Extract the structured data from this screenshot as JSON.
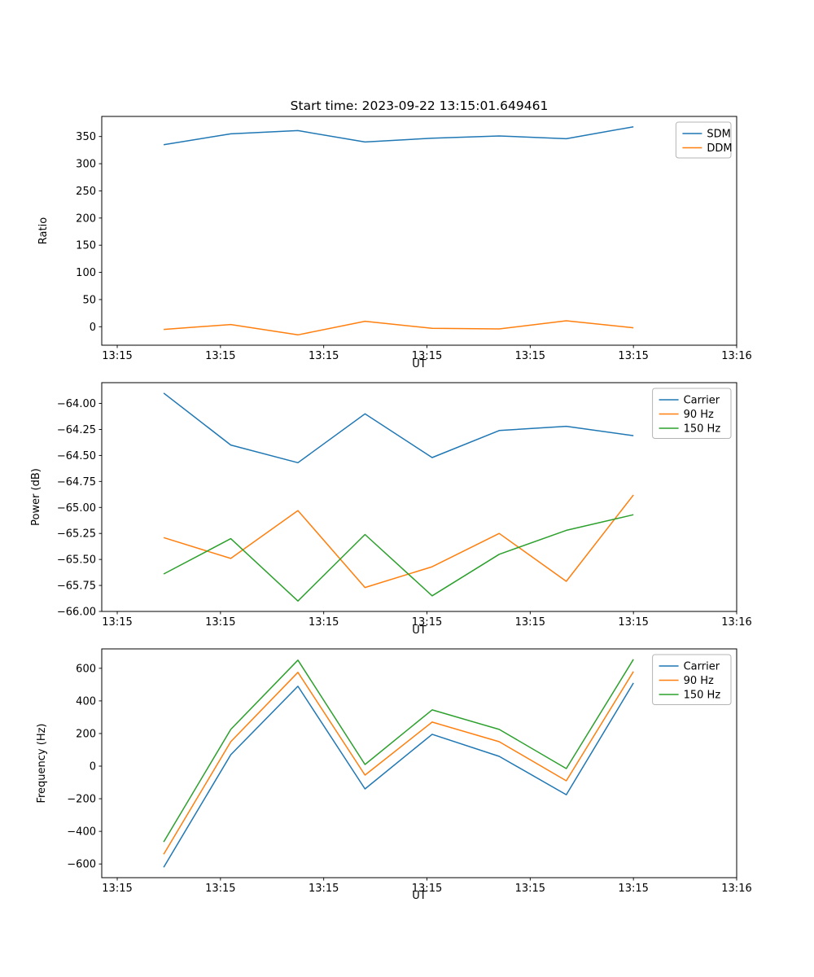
{
  "figure": {
    "title": "Start time: 2023-09-22 13:15:01.649461",
    "background": "#ffffff",
    "palette": {
      "blue": "#1f77b4",
      "orange": "#ff7f0e",
      "green": "#2ca02c"
    }
  },
  "chart_data": [
    {
      "type": "line",
      "title": "Start time: 2023-09-22 13:15:01.649461",
      "xlabel": "UT",
      "ylabel": "Ratio",
      "x_unit": "seconds after 13:15:00 UT",
      "x": [
        4.5,
        11,
        17.5,
        24,
        30.5,
        37,
        43.5,
        50
      ],
      "xlim": [
        -1.5,
        60
      ],
      "ylim": [
        -34,
        387
      ],
      "grid": false,
      "legend_position": "upper right",
      "xticks": {
        "values": [
          0,
          10,
          20,
          30,
          40,
          50,
          60
        ],
        "labels": [
          "13:15",
          "13:15",
          "13:15",
          "13:15",
          "13:15",
          "13:15",
          "13:16"
        ]
      },
      "yticks": {
        "values": [
          0,
          50,
          100,
          150,
          200,
          250,
          300,
          350
        ],
        "labels": [
          "0",
          "50",
          "100",
          "150",
          "200",
          "250",
          "300",
          "350"
        ]
      },
      "series": [
        {
          "name": "SDM",
          "color": "#1f77b4",
          "values": [
            335,
            355,
            361,
            340,
            347,
            351,
            346,
            368
          ]
        },
        {
          "name": "DDM",
          "color": "#ff7f0e",
          "values": [
            -5,
            4,
            -15,
            10,
            -3,
            -4,
            11,
            -2
          ]
        }
      ]
    },
    {
      "type": "line",
      "title": "",
      "xlabel": "UT",
      "ylabel": "Power (dB)",
      "x_unit": "seconds after 13:15:00 UT",
      "x": [
        4.5,
        11,
        17.5,
        24,
        30.5,
        37,
        43.5,
        50
      ],
      "xlim": [
        -1.5,
        60
      ],
      "ylim": [
        -66.0,
        -63.8
      ],
      "grid": false,
      "legend_position": "upper right",
      "xticks": {
        "values": [
          0,
          10,
          20,
          30,
          40,
          50,
          60
        ],
        "labels": [
          "13:15",
          "13:15",
          "13:15",
          "13:15",
          "13:15",
          "13:15",
          "13:16"
        ]
      },
      "yticks": {
        "values": [
          -66.0,
          -65.75,
          -65.5,
          -65.25,
          -65.0,
          -64.75,
          -64.5,
          -64.25,
          -64.0
        ],
        "labels": [
          "−66.00",
          "−65.75",
          "−65.50",
          "−65.25",
          "−65.00",
          "−64.75",
          "−64.50",
          "−64.25",
          "−64.00"
        ]
      },
      "series": [
        {
          "name": "Carrier",
          "color": "#1f77b4",
          "values": [
            -63.9,
            -64.4,
            -64.57,
            -64.1,
            -64.52,
            -64.26,
            -64.22,
            -64.31
          ]
        },
        {
          "name": "90 Hz",
          "color": "#ff7f0e",
          "values": [
            -65.29,
            -65.49,
            -65.03,
            -65.77,
            -65.57,
            -65.25,
            -65.71,
            -64.88
          ]
        },
        {
          "name": "150 Hz",
          "color": "#2ca02c",
          "values": [
            -65.64,
            -65.3,
            -65.9,
            -65.26,
            -65.85,
            -65.45,
            -65.22,
            -65.07
          ]
        }
      ]
    },
    {
      "type": "line",
      "title": "",
      "xlabel": "UT",
      "ylabel": "Frequency (Hz)",
      "x_unit": "seconds after 13:15:00 UT",
      "x": [
        4.5,
        11,
        17.5,
        24,
        30.5,
        37,
        43.5,
        50
      ],
      "xlim": [
        -1.5,
        60
      ],
      "ylim": [
        -684,
        719
      ],
      "grid": false,
      "legend_position": "upper right",
      "xticks": {
        "values": [
          0,
          10,
          20,
          30,
          40,
          50,
          60
        ],
        "labels": [
          "13:15",
          "13:15",
          "13:15",
          "13:15",
          "13:15",
          "13:15",
          "13:16"
        ]
      },
      "yticks": {
        "values": [
          -600,
          -400,
          -200,
          0,
          200,
          400,
          600
        ],
        "labels": [
          "−600",
          "−400",
          "−200",
          "0",
          "200",
          "400",
          "600"
        ]
      },
      "series": [
        {
          "name": "Carrier",
          "color": "#1f77b4",
          "values": [
            -620,
            70,
            490,
            -140,
            195,
            60,
            -175,
            510
          ]
        },
        {
          "name": "90 Hz",
          "color": "#ff7f0e",
          "values": [
            -540,
            150,
            575,
            -55,
            270,
            150,
            -90,
            580
          ]
        },
        {
          "name": "150 Hz",
          "color": "#2ca02c",
          "values": [
            -465,
            225,
            650,
            10,
            345,
            225,
            -15,
            655
          ]
        }
      ]
    }
  ]
}
